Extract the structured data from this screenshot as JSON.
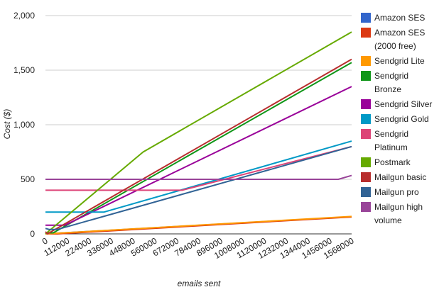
{
  "chart_data": {
    "type": "line",
    "title": "",
    "xlabel": "emails sent",
    "ylabel": "Cost ($)",
    "xlim": [
      0,
      1568000
    ],
    "ylim": [
      0,
      2000
    ],
    "x_ticks": [
      0,
      112000,
      224000,
      336000,
      448000,
      560000,
      672000,
      784000,
      896000,
      1008000,
      1120000,
      1232000,
      1344000,
      1456000,
      1568000
    ],
    "x_tick_labels": [
      "0",
      "112000",
      "224000",
      "336000",
      "448000",
      "560000",
      "672000",
      "784000",
      "896000",
      "1008000",
      "1120000",
      "1232000",
      "1344000",
      "1456000",
      "1568000"
    ],
    "y_ticks": [
      0,
      500,
      1000,
      1500,
      2000
    ],
    "y_tick_labels": [
      "0",
      "500",
      "1,000",
      "1,500",
      "2,000"
    ],
    "grid": true,
    "legend_position": "right",
    "series": [
      {
        "name": "Amazon SES",
        "color": "#3366cc",
        "x": [
          0,
          1568000
        ],
        "y": [
          0,
          157
        ]
      },
      {
        "name": "Amazon SES (2000 free)",
        "color": "#dc3912",
        "x": [
          0,
          60000,
          1568000
        ],
        "y": [
          0,
          0,
          155
        ]
      },
      {
        "name": "Sendgrid Lite",
        "color": "#ff9900",
        "x": [
          0,
          1568000
        ],
        "y": [
          0,
          160
        ]
      },
      {
        "name": "Sendgrid Bronze",
        "color": "#109618",
        "x": [
          0,
          40000,
          1568000
        ],
        "y": [
          10,
          10,
          1570
        ]
      },
      {
        "name": "Sendgrid Silver",
        "color": "#990099",
        "x": [
          0,
          100000,
          1568000
        ],
        "y": [
          80,
          80,
          1350
        ]
      },
      {
        "name": "Sendgrid Gold",
        "color": "#0099c6",
        "x": [
          0,
          300000,
          1568000
        ],
        "y": [
          200,
          200,
          850
        ]
      },
      {
        "name": "Sendgrid Platinum",
        "color": "#dd4477",
        "x": [
          0,
          700000,
          1568000
        ],
        "y": [
          400,
          400,
          800
        ]
      },
      {
        "name": "Postmark",
        "color": "#66aa00",
        "x": [
          0,
          500000,
          1568000
        ],
        "y": [
          0,
          750,
          1850
        ]
      },
      {
        "name": "Mailgun basic",
        "color": "#b82e2e",
        "x": [
          0,
          10000,
          1568000
        ],
        "y": [
          20,
          0,
          1600
        ]
      },
      {
        "name": "Mailgun pro",
        "color": "#316395",
        "x": [
          0,
          20000,
          60000,
          1568000
        ],
        "y": [
          50,
          40,
          40,
          800
        ]
      },
      {
        "name": "Mailgun high volume",
        "color": "#994499",
        "x": [
          0,
          1500000,
          1568000
        ],
        "y": [
          500,
          500,
          535
        ]
      }
    ]
  },
  "legend_lines": [
    [
      "Amazon SES"
    ],
    [
      "Amazon SES",
      "(2000 free)"
    ],
    [
      "Sendgrid Lite"
    ],
    [
      "Sendgrid",
      "Bronze"
    ],
    [
      "Sendgrid Silver"
    ],
    [
      "Sendgrid Gold"
    ],
    [
      "Sendgrid",
      "Platinum"
    ],
    [
      "Postmark"
    ],
    [
      "Mailgun basic"
    ],
    [
      "Mailgun pro"
    ],
    [
      "Mailgun high",
      "volume"
    ]
  ]
}
